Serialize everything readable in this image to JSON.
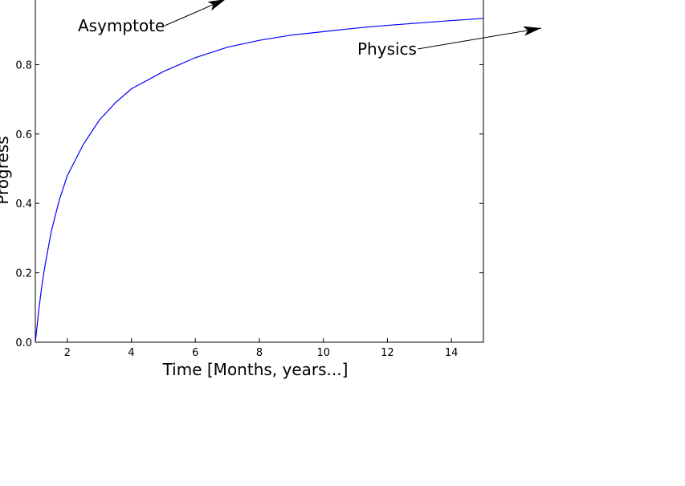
{
  "chart_data": {
    "type": "line",
    "title": "",
    "xlabel": "Time [Months, years...]",
    "ylabel": "Progress",
    "xlim": [
      1,
      15
    ],
    "ylim": [
      0,
      1
    ],
    "xticks": [
      2,
      4,
      6,
      8,
      10,
      12,
      14
    ],
    "xtick_labels": [
      "2",
      "4",
      "6",
      "8",
      "10",
      "12",
      "14"
    ],
    "yticks": [
      0.0,
      0.2,
      0.4,
      0.6,
      0.8
    ],
    "ytick_labels": [
      "0.0",
      "0.2",
      "0.4",
      "0.6",
      "0.8"
    ],
    "grid": false,
    "legend": "none",
    "series": [
      {
        "color": "#0000ff",
        "x": [
          1,
          1.1,
          1.2,
          1.3,
          1.5,
          1.75,
          2,
          2.5,
          3,
          3.5,
          4,
          5,
          6,
          7,
          8,
          9,
          10,
          11,
          12,
          13,
          14,
          15
        ],
        "y": [
          0.0,
          0.087,
          0.16,
          0.22,
          0.32,
          0.41,
          0.48,
          0.57,
          0.64,
          0.69,
          0.73,
          0.78,
          0.82,
          0.85,
          0.87,
          0.885,
          0.895,
          0.905,
          0.913,
          0.92,
          0.927,
          0.933
        ]
      }
    ],
    "annotations": [
      {
        "text": "Asymptote"
      },
      {
        "text": "Physics"
      }
    ]
  }
}
